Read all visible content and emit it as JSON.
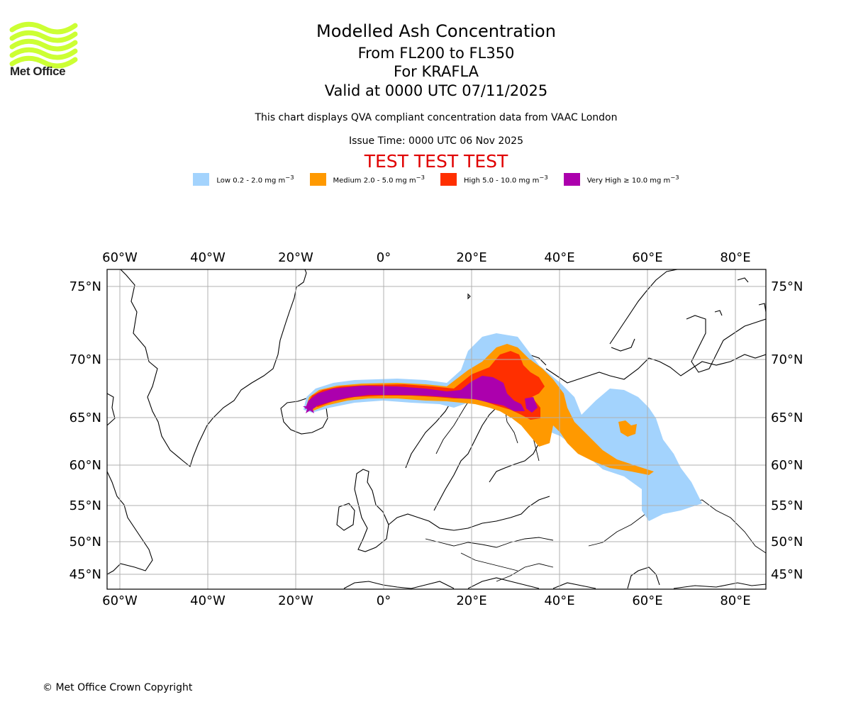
{
  "logo": {
    "text": "Met Office",
    "color": "#ccff33"
  },
  "header": {
    "title": "Modelled Ash Concentration",
    "levels": "From FL200 to FL350",
    "volcano": "For KRAFLA",
    "valid": "Valid at 0000 UTC 07/11/2025",
    "description": "This chart displays QVA compliant concentration data from VAAC London",
    "issue": "Issue Time: 0000 UTC 06 Nov 2025",
    "test": "TEST TEST TEST"
  },
  "legend": [
    {
      "label": "Low 0.2 - 2.0 mg m",
      "color": "#a3d3fd"
    },
    {
      "label": "Medium 2.0 - 5.0 mg m",
      "color": "#ff9900"
    },
    {
      "label": "High 5.0 - 10.0 mg m",
      "color": "#ff2f00"
    },
    {
      "label": "Very High  ≥  10.0 mg m",
      "color": "#ac00ad"
    }
  ],
  "legend_unit_exp": "−3",
  "map": {
    "lon_ticks": [
      "60°W",
      "40°W",
      "20°W",
      "0°",
      "20°E",
      "40°E",
      "60°E",
      "80°E"
    ],
    "lat_ticks": [
      "75°N",
      "70°N",
      "65°N",
      "60°N",
      "55°N",
      "50°N",
      "45°N"
    ]
  },
  "footer": {
    "copyright": "© Met Office Crown Copyright"
  }
}
